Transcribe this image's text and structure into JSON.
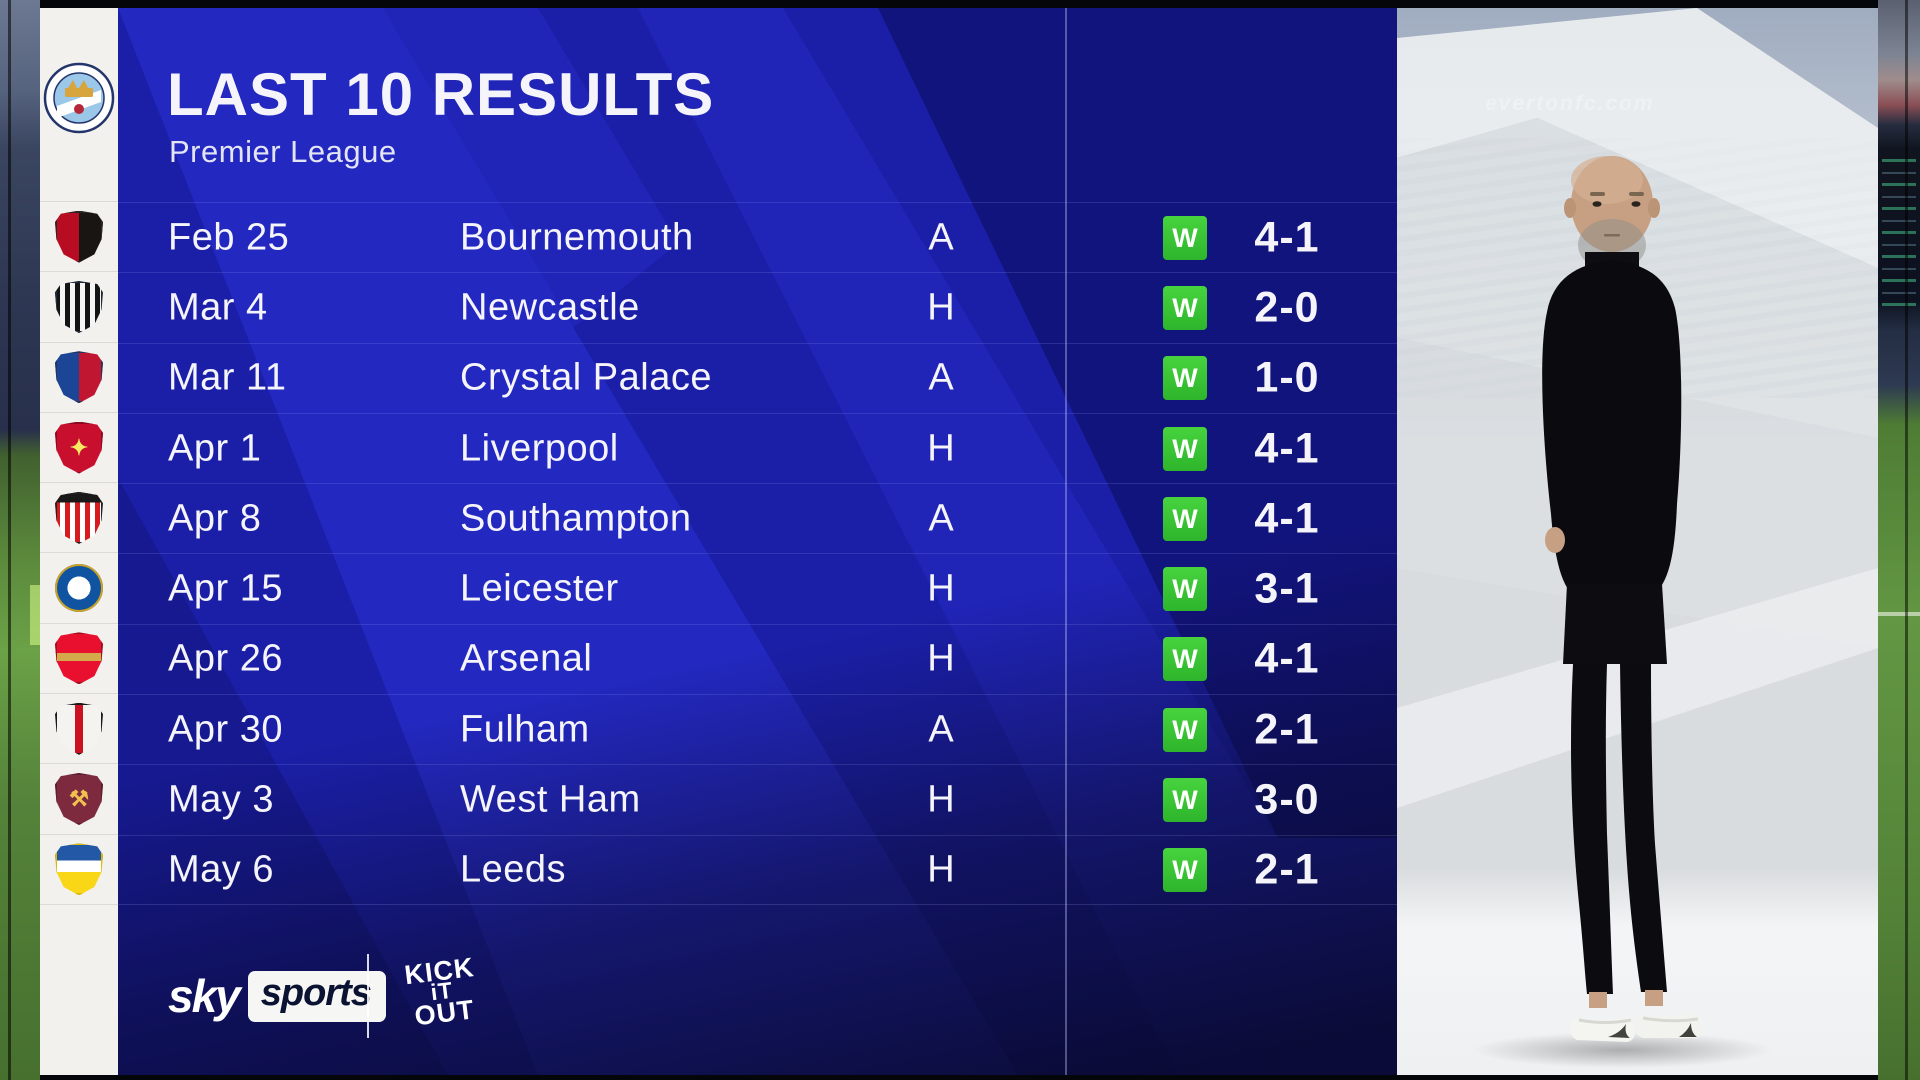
{
  "header": {
    "title": "LAST 10 RESULTS",
    "subtitle": "Premier League"
  },
  "team": {
    "name": "Manchester City"
  },
  "results": [
    {
      "date": "Feb 25",
      "opponent": "Bournemouth",
      "venue": "A",
      "outcome": "W",
      "score": "4-1",
      "crest": {
        "shape": "shield",
        "bg": "linear-gradient(90deg,#b80c22 0 50%,#191512 50% 100%)",
        "border": "#2a2623"
      }
    },
    {
      "date": "Mar 4",
      "opponent": "Newcastle",
      "venue": "H",
      "outcome": "W",
      "score": "2-0",
      "crest": {
        "shape": "shield",
        "bg": "repeating-linear-gradient(90deg,#141414 0 5px,#f5f5f5 5px 10px)",
        "border": "#1f2a38"
      }
    },
    {
      "date": "Mar 11",
      "opponent": "Crystal Palace",
      "venue": "A",
      "outcome": "W",
      "score": "1-0",
      "crest": {
        "shape": "shield",
        "bg": "linear-gradient(90deg,#1c4595 0 50%,#c01632 50% 100%)",
        "border": "#23355c"
      }
    },
    {
      "date": "Apr 1",
      "opponent": "Liverpool",
      "venue": "H",
      "outcome": "W",
      "score": "4-1",
      "crest": {
        "shape": "shield",
        "bg": "#c8102e",
        "border": "#8d0b20",
        "glyph": "✦",
        "glyph_color": "#f6eb61"
      }
    },
    {
      "date": "Apr 8",
      "opponent": "Southampton",
      "venue": "A",
      "outcome": "W",
      "score": "4-1",
      "crest": {
        "shape": "shield",
        "bg": "linear-gradient(180deg,#191919 0 20%,rgba(0,0,0,0) 20%),repeating-linear-gradient(90deg,#d71920 0 5px,#ffffff 5px 10px)",
        "border": "#232323"
      }
    },
    {
      "date": "Apr 15",
      "opponent": "Leicester",
      "venue": "H",
      "outcome": "W",
      "score": "3-1",
      "crest": {
        "shape": "circle",
        "bg": "radial-gradient(circle,#ffffff 0 34%,#1053a0 34% 100%)",
        "border": "#c9a227"
      }
    },
    {
      "date": "Apr 26",
      "opponent": "Arsenal",
      "venue": "H",
      "outcome": "W",
      "score": "4-1",
      "crest": {
        "shape": "shield",
        "bg": "linear-gradient(180deg,#e8102e 0 40%,#d4a94a 40% 56%,#e8102e 56% 100%)",
        "border": "#9c1021"
      }
    },
    {
      "date": "Apr 30",
      "opponent": "Fulham",
      "venue": "A",
      "outcome": "W",
      "score": "2-1",
      "crest": {
        "shape": "shield",
        "bg": "linear-gradient(90deg,rgba(0,0,0,0) 0 42%,#cc1122 42% 58%,rgba(0,0,0,0) 58%),#f4f3f0",
        "border": "#1a1a1a"
      }
    },
    {
      "date": "May 3",
      "opponent": "West Ham",
      "venue": "H",
      "outcome": "W",
      "score": "3-0",
      "crest": {
        "shape": "shield",
        "bg": "#7d2a3f",
        "border": "#5d1e2f",
        "glyph": "⚒",
        "glyph_color": "#f0c14f"
      }
    },
    {
      "date": "May 6",
      "opponent": "Leeds",
      "venue": "H",
      "outcome": "W",
      "score": "2-1",
      "crest": {
        "shape": "shield",
        "bg": "linear-gradient(180deg,#2258a5 0 34%,#ffffff 34% 56%,#f9d616 56% 100%)",
        "border": "#d9b90c"
      }
    }
  ],
  "footer": {
    "sky": "sky",
    "sports": "sports",
    "kick_it_out_lines": [
      "KICK",
      "iT",
      "OUT"
    ]
  },
  "photo_panel": {
    "stand_sign": "evertonfc.com"
  },
  "colors": {
    "panel_blue": "#1b1fa8",
    "panel_blue_light": "#2b31d8",
    "panel_blue_dark": "#101270",
    "win_green": "#2eb52c",
    "text": "#f4f4fa",
    "rail_white": "#f2f1ee",
    "photo_grey": "#d8dadc",
    "sports_box_text": "#0b1333"
  }
}
